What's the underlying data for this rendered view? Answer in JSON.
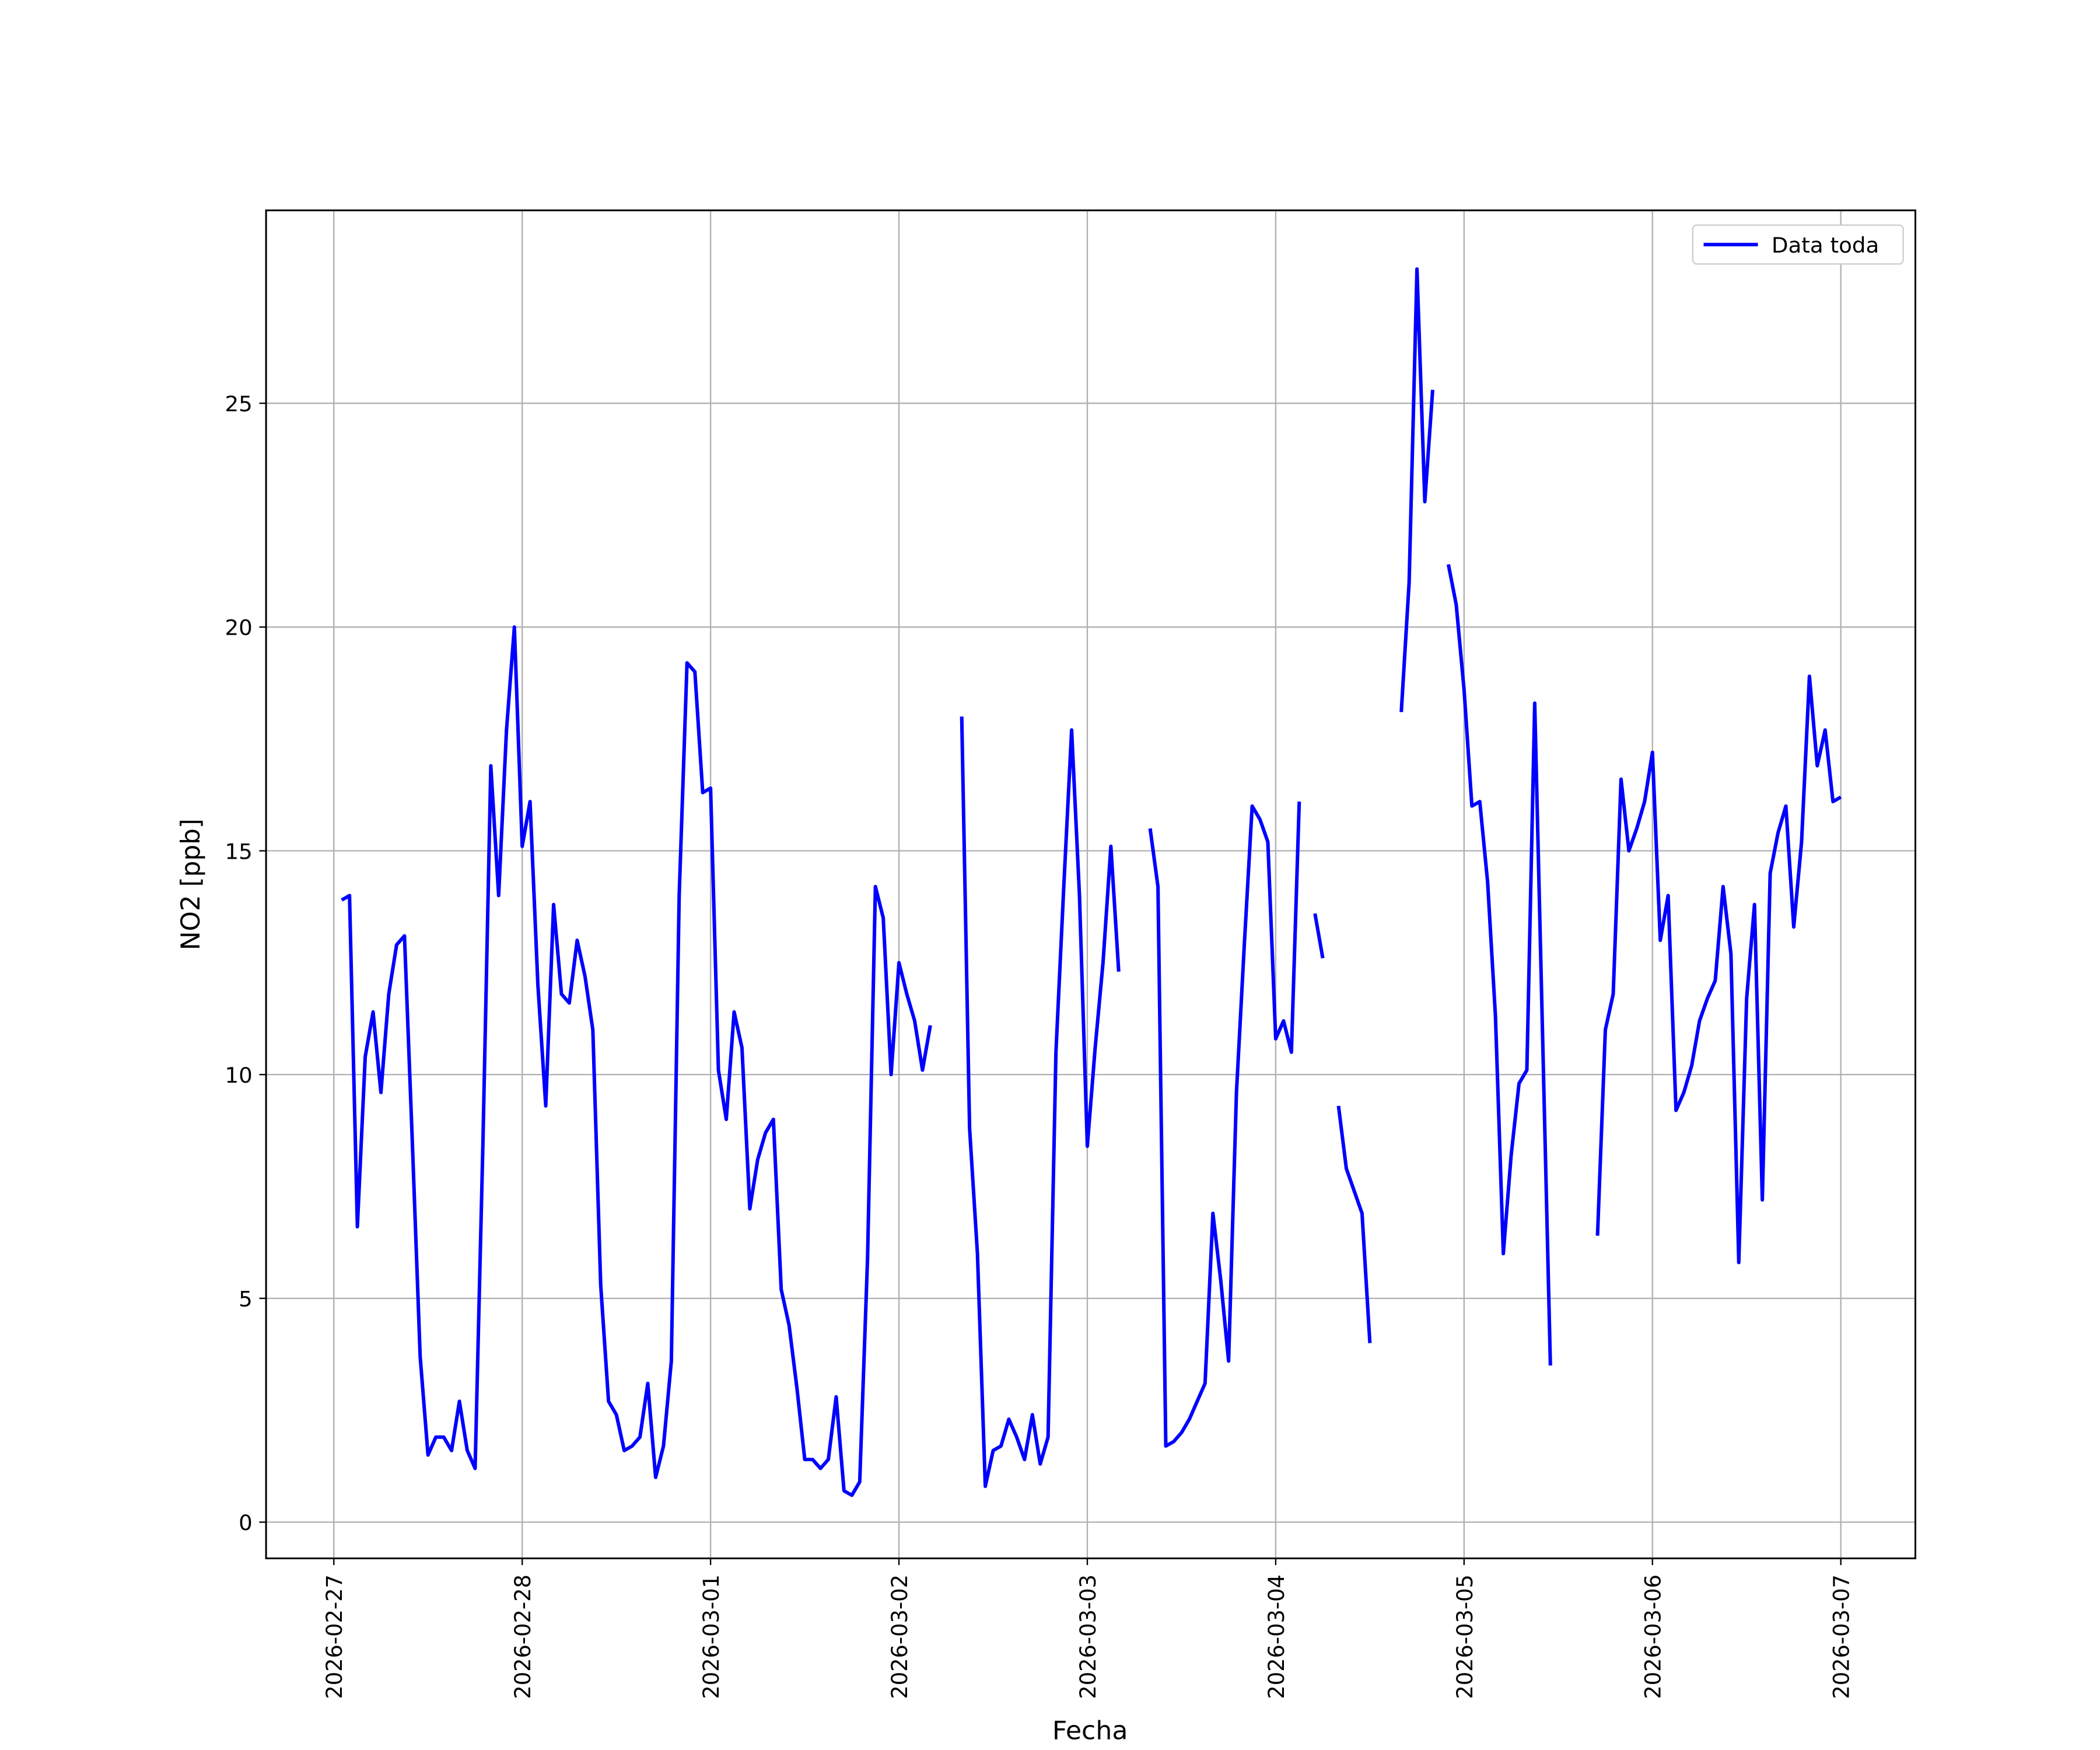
{
  "chart_data": {
    "type": "line",
    "xlabel": "Fecha",
    "ylabel": "NO2 [ppb]",
    "legend": "upper right",
    "grid": true,
    "xlim": [
      "2026-02-26 15:22",
      "2026-03-07 09:30"
    ],
    "ylim": [
      -0.81,
      29.31
    ],
    "xticks": [
      "2026-02-27",
      "2026-02-28",
      "2026-03-01",
      "2026-03-02",
      "2026-03-03",
      "2026-03-04",
      "2026-03-05",
      "2026-03-06",
      "2026-03-07"
    ],
    "yticks": [
      0,
      5,
      10,
      15,
      20,
      25
    ],
    "x": [
      "2026-02-27 01:00",
      "2026-02-27 02:00",
      "2026-02-27 03:00",
      "2026-02-27 04:00",
      "2026-02-27 05:00",
      "2026-02-27 06:00",
      "2026-02-27 07:00",
      "2026-02-27 08:00",
      "2026-02-27 09:00",
      "2026-02-27 10:00",
      "2026-02-27 11:00",
      "2026-02-27 12:00",
      "2026-02-27 13:00",
      "2026-02-27 14:00",
      "2026-02-27 15:00",
      "2026-02-27 16:00",
      "2026-02-27 17:00",
      "2026-02-27 18:00",
      "2026-02-27 19:00",
      "2026-02-27 20:00",
      "2026-02-27 21:00",
      "2026-02-27 22:00",
      "2026-02-27 23:00",
      "2026-02-28 00:00",
      "2026-02-28 01:00",
      "2026-02-28 02:00",
      "2026-02-28 03:00",
      "2026-02-28 04:00",
      "2026-02-28 05:00",
      "2026-02-28 06:00",
      "2026-02-28 07:00",
      "2026-02-28 08:00",
      "2026-02-28 09:00",
      "2026-02-28 10:00",
      "2026-02-28 11:00",
      "2026-02-28 12:00",
      "2026-02-28 13:00",
      "2026-02-28 14:00",
      "2026-02-28 15:00",
      "2026-02-28 16:00",
      "2026-02-28 17:00",
      "2026-02-28 18:00",
      "2026-02-28 19:00",
      "2026-02-28 20:00",
      "2026-02-28 21:00",
      "2026-02-28 22:00",
      "2026-02-28 23:00",
      "2026-03-01 00:00",
      "2026-03-01 01:00",
      "2026-03-01 02:00",
      "2026-03-01 03:00",
      "2026-03-01 04:00",
      "2026-03-01 05:00",
      "2026-03-01 06:00",
      "2026-03-01 07:00",
      "2026-03-01 08:00",
      "2026-03-01 09:00",
      "2026-03-01 10:00",
      "2026-03-01 11:00",
      "2026-03-01 12:00",
      "2026-03-01 13:00",
      "2026-03-01 14:00",
      "2026-03-01 15:00",
      "2026-03-01 16:00",
      "2026-03-01 17:00",
      "2026-03-01 18:00",
      "2026-03-01 19:00",
      "2026-03-01 20:00",
      "2026-03-01 21:00",
      "2026-03-01 22:00",
      "2026-03-01 23:00",
      "2026-03-02 00:00",
      "2026-03-02 01:00",
      "2026-03-02 02:00",
      "2026-03-02 03:00",
      "2026-03-02 04:00",
      "2026-03-02 05:00",
      "2026-03-02 06:00",
      "2026-03-02 07:00",
      "2026-03-02 08:00",
      "2026-03-02 09:00",
      "2026-03-02 10:00",
      "2026-03-02 11:00",
      "2026-03-02 12:00",
      "2026-03-02 13:00",
      "2026-03-02 14:00",
      "2026-03-02 15:00",
      "2026-03-02 16:00",
      "2026-03-02 17:00",
      "2026-03-02 18:00",
      "2026-03-02 19:00",
      "2026-03-02 20:00",
      "2026-03-02 21:00",
      "2026-03-02 22:00",
      "2026-03-02 23:00",
      "2026-03-03 00:00",
      "2026-03-03 01:00",
      "2026-03-03 02:00",
      "2026-03-03 03:00",
      "2026-03-03 04:00",
      "2026-03-03 05:00",
      "2026-03-03 06:00",
      "2026-03-03 07:00",
      "2026-03-03 08:00",
      "2026-03-03 09:00",
      "2026-03-03 10:00",
      "2026-03-03 11:00",
      "2026-03-03 12:00",
      "2026-03-03 13:00",
      "2026-03-03 14:00",
      "2026-03-03 15:00",
      "2026-03-03 16:00",
      "2026-03-03 17:00",
      "2026-03-03 18:00",
      "2026-03-03 19:00",
      "2026-03-03 20:00",
      "2026-03-03 21:00",
      "2026-03-03 22:00",
      "2026-03-03 23:00",
      "2026-03-04 00:00",
      "2026-03-04 01:00",
      "2026-03-04 02:00",
      "2026-03-04 03:00",
      "2026-03-04 04:00",
      "2026-03-04 05:00",
      "2026-03-04 06:00",
      "2026-03-04 07:00",
      "2026-03-04 08:00",
      "2026-03-04 09:00",
      "2026-03-04 10:00",
      "2026-03-04 11:00",
      "2026-03-04 12:00",
      "2026-03-04 13:00",
      "2026-03-04 14:00",
      "2026-03-04 15:00",
      "2026-03-04 16:00",
      "2026-03-04 17:00",
      "2026-03-04 18:00",
      "2026-03-04 19:00",
      "2026-03-04 20:00",
      "2026-03-04 21:00",
      "2026-03-04 22:00",
      "2026-03-04 23:00",
      "2026-03-05 00:00",
      "2026-03-05 01:00",
      "2026-03-05 02:00",
      "2026-03-05 03:00",
      "2026-03-05 04:00",
      "2026-03-05 05:00",
      "2026-03-05 06:00",
      "2026-03-05 07:00",
      "2026-03-05 08:00",
      "2026-03-05 09:00",
      "2026-03-05 10:00",
      "2026-03-05 11:00",
      "2026-03-05 12:00",
      "2026-03-05 13:00",
      "2026-03-05 14:00",
      "2026-03-05 15:00",
      "2026-03-05 16:00",
      "2026-03-05 17:00",
      "2026-03-05 18:00",
      "2026-03-05 19:00",
      "2026-03-05 20:00",
      "2026-03-05 21:00",
      "2026-03-05 22:00",
      "2026-03-05 23:00",
      "2026-03-06 00:00",
      "2026-03-06 01:00",
      "2026-03-06 02:00",
      "2026-03-06 03:00",
      "2026-03-06 04:00",
      "2026-03-06 05:00",
      "2026-03-06 06:00",
      "2026-03-06 07:00",
      "2026-03-06 08:00",
      "2026-03-06 09:00",
      "2026-03-06 10:00",
      "2026-03-06 11:00",
      "2026-03-06 12:00",
      "2026-03-06 13:00",
      "2026-03-06 14:00",
      "2026-03-06 15:00",
      "2026-03-06 16:00",
      "2026-03-06 17:00",
      "2026-03-06 18:00",
      "2026-03-06 19:00",
      "2026-03-06 20:00",
      "2026-03-06 21:00",
      "2026-03-06 22:00",
      "2026-03-06 23:00",
      "2026-03-07 00:00"
    ],
    "series": [
      {
        "name": "Data toda",
        "color": "#0000ff",
        "values": [
          13.9,
          14.0,
          6.6,
          10.4,
          11.4,
          9.6,
          11.8,
          12.9,
          13.1,
          8.5,
          3.7,
          1.5,
          1.9,
          1.9,
          1.6,
          2.7,
          1.6,
          1.2,
          8.5,
          16.9,
          14.0,
          17.7,
          20.0,
          15.1,
          16.1,
          12.0,
          9.3,
          13.8,
          11.8,
          11.6,
          13.0,
          12.2,
          11.0,
          5.3,
          2.7,
          2.4,
          1.6,
          1.7,
          1.9,
          3.1,
          1.0,
          1.7,
          3.6,
          14.0,
          19.2,
          19.0,
          16.3,
          16.4,
          10.1,
          9.0,
          11.4,
          10.6,
          7.0,
          8.1,
          8.7,
          9.0,
          5.2,
          4.4,
          3.0,
          1.4,
          1.4,
          1.2,
          1.4,
          2.8,
          0.7,
          0.6,
          0.9,
          5.9,
          14.2,
          13.5,
          10.0,
          12.5,
          11.8,
          11.2,
          10.1,
          11.1,
          null,
          null,
          null,
          18.0,
          8.8,
          6.0,
          0.8,
          1.6,
          1.7,
          2.3,
          1.9,
          1.4,
          2.4,
          1.3,
          1.9,
          10.5,
          14.2,
          17.7,
          14.0,
          8.4,
          10.6,
          12.5,
          15.1,
          12.3,
          null,
          null,
          null,
          15.5,
          14.2,
          1.7,
          1.8,
          2.0,
          2.3,
          2.7,
          3.1,
          6.9,
          5.4,
          3.6,
          9.6,
          12.9,
          16.0,
          15.7,
          15.2,
          10.8,
          11.2,
          10.5,
          16.1,
          null,
          13.6,
          12.6,
          null,
          9.3,
          7.9,
          7.4,
          6.9,
          4.0,
          null,
          null,
          null,
          18.1,
          21.0,
          28.0,
          22.8,
          25.3,
          null,
          21.4,
          20.5,
          18.6,
          16.0,
          16.1,
          14.3,
          11.3,
          6.0,
          8.2,
          9.8,
          10.1,
          18.3,
          10.9,
          3.5,
          null,
          null,
          null,
          null,
          null,
          6.4,
          11.0,
          11.8,
          16.6,
          15.0,
          15.5,
          16.1,
          17.2,
          13.0,
          14.0,
          9.2,
          9.6,
          10.2,
          11.2,
          11.7,
          12.1,
          14.2,
          12.7,
          5.8,
          11.7,
          13.8,
          7.2,
          14.5,
          15.4,
          16.0,
          13.3,
          15.2,
          18.9,
          16.9,
          17.7,
          16.1,
          16.2
        ]
      }
    ]
  }
}
